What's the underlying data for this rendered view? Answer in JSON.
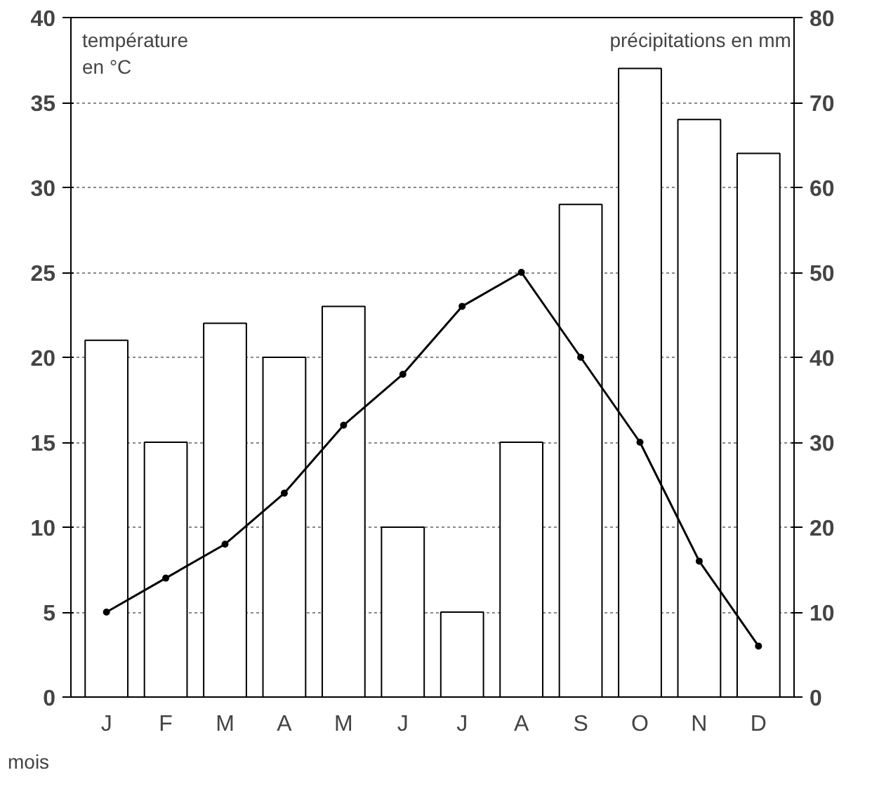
{
  "chart_data": {
    "type": "bar",
    "ylabel": "température\nen °C",
    "y2label": "précipitations en mm",
    "xlabel": "mois",
    "categories": [
      "J",
      "F",
      "M",
      "A",
      "M",
      "J",
      "J",
      "A",
      "S",
      "O",
      "N",
      "D"
    ],
    "series": [
      {
        "axis": "y2",
        "color": "#ffffff",
        "values": [
          42,
          30,
          44,
          40,
          46,
          20,
          10,
          30,
          58,
          74,
          68,
          64
        ]
      },
      {
        "type": "line",
        "axis": "y",
        "color": "#000000",
        "marker": "circle",
        "line_style": "solid",
        "values": [
          5,
          7,
          9,
          12,
          16,
          19,
          23,
          25,
          20,
          15,
          8,
          3
        ]
      }
    ],
    "ylim": [
      0,
      40
    ],
    "yticks": [
      0,
      5,
      10,
      15,
      20,
      25,
      30,
      35,
      40
    ],
    "y2lim": [
      0,
      80
    ],
    "y2ticks": [
      0,
      10,
      20,
      30,
      40,
      50,
      60,
      70,
      80
    ],
    "grid": "y"
  }
}
